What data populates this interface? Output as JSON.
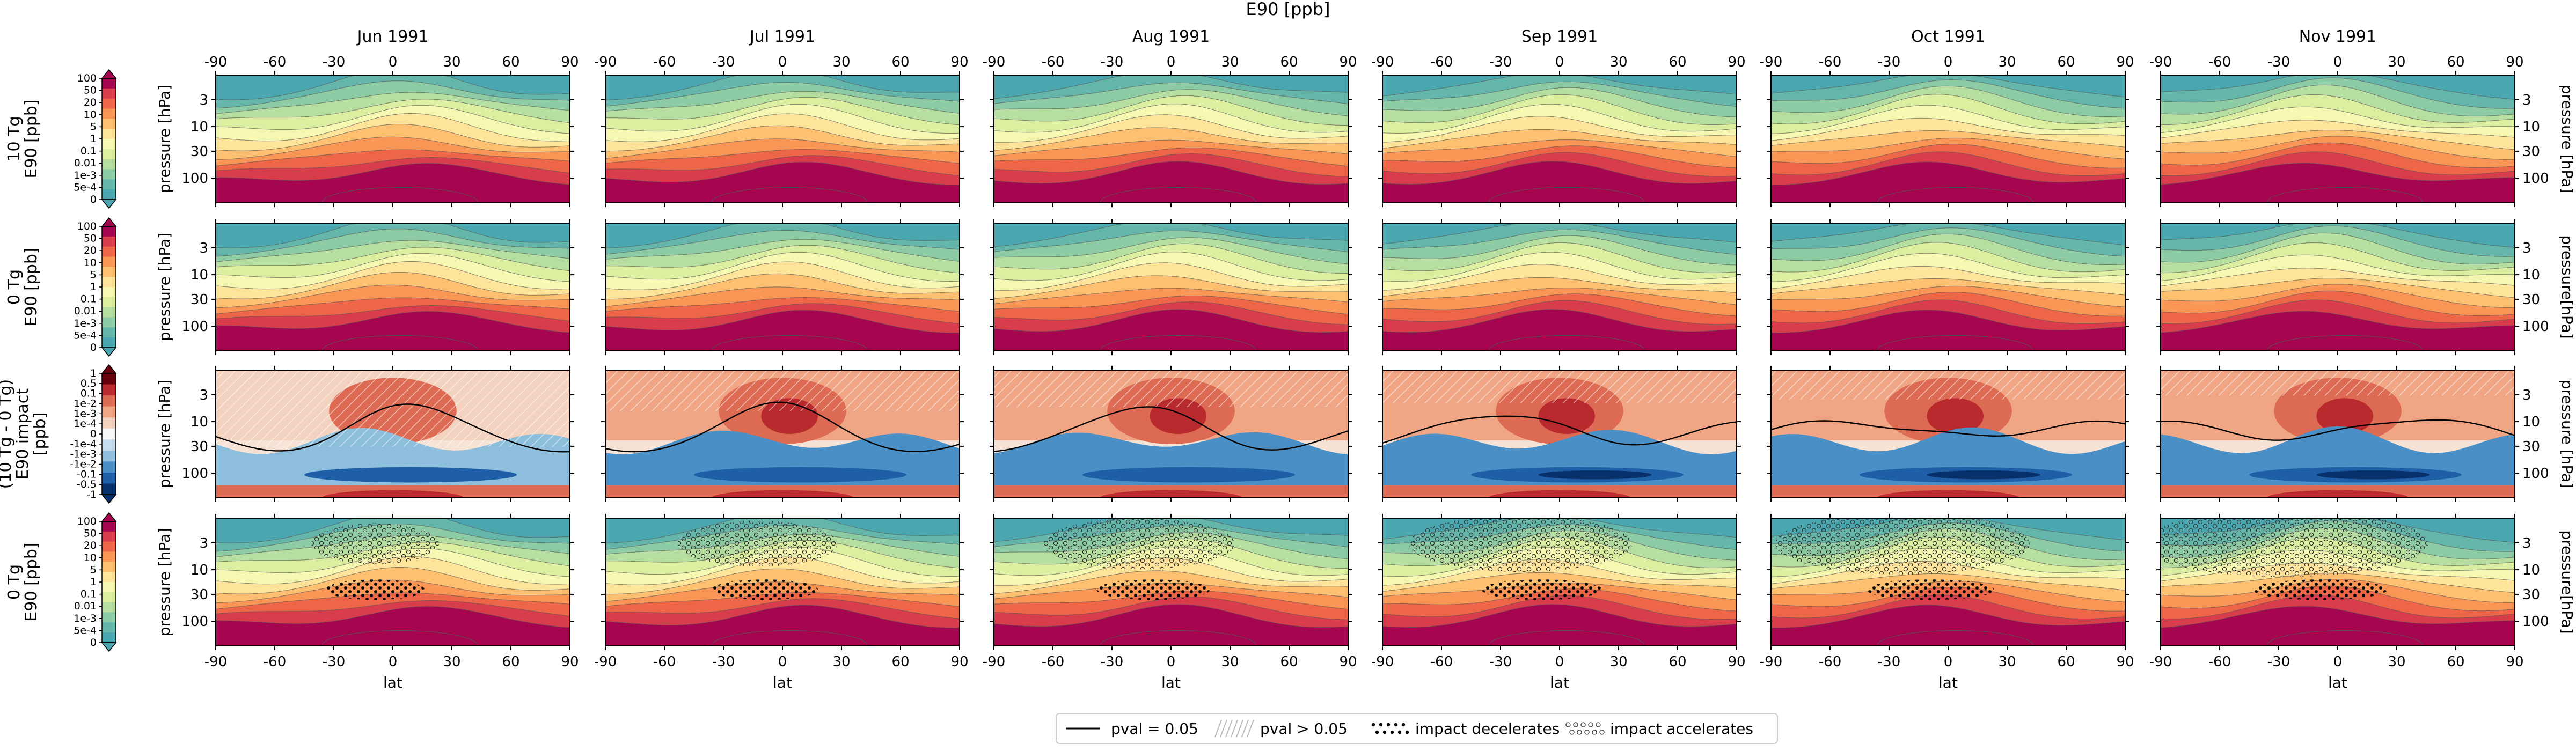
{
  "chart_data": {
    "type": "heatmap",
    "title": "E90 [ppb]",
    "columns": [
      "Jun 1991",
      "Jul 1991",
      "Aug 1991",
      "Sep 1991",
      "Oct 1991",
      "Nov 1991"
    ],
    "xlabel": "lat",
    "ylabel_left": "pressure [hPa]",
    "ylabel_right": [
      "pressure [hPa]",
      "pressure[hPa]",
      "pressure [hPa]",
      "pressure[hPa]"
    ],
    "xticks": [
      -90,
      -60,
      -30,
      0,
      30,
      60,
      90
    ],
    "xlim": [
      -90,
      90
    ],
    "yticks": [
      3,
      10,
      30,
      100
    ],
    "ylim_hPa": [
      1,
      300
    ],
    "yscale": "log",
    "yaxis_inverted": true,
    "rows": [
      {
        "label": [
          "10 Tg",
          "E90 [ppb]"
        ],
        "colorbar_ticks": [
          "100",
          "50",
          "20",
          "10",
          "5",
          "1",
          "0.1",
          "0.01",
          "1e-3",
          "5e-4",
          "0"
        ],
        "colormap": "diverging-red-yellow-teal"
      },
      {
        "label": [
          "0 Tg",
          "E90 [ppb]"
        ],
        "colorbar_ticks": [
          "100",
          "50",
          "20",
          "10",
          "5",
          "1",
          "0.1",
          "0.01",
          "1e-3",
          "5e-4",
          "0"
        ],
        "colormap": "diverging-red-yellow-teal"
      },
      {
        "label": [
          "(10 Tg - 0 Tg)",
          "E90 impact",
          "[ppb]"
        ],
        "colorbar_ticks": [
          "1",
          "0.5",
          "0.1",
          "1e-2",
          "1e-3",
          "1e-4",
          "0",
          "-1e-4",
          "-1e-3",
          "-1e-2",
          "-0.1",
          "-0.5",
          "-1"
        ],
        "colormap": "diverging-red-blue"
      },
      {
        "label": [
          "0 Tg",
          "E90 [ppb]"
        ],
        "colorbar_ticks": [
          "100",
          "50",
          "20",
          "10",
          "5",
          "1",
          "0.1",
          "0.01",
          "1e-3",
          "5e-4",
          "0"
        ],
        "colormap": "diverging-red-yellow-teal"
      }
    ],
    "legend": {
      "placement": "bottom-center",
      "entries": [
        {
          "label": "pval = 0.05",
          "marker": "solid-line"
        },
        {
          "label": "pval > 0.05",
          "marker": "diagonal-hatch"
        },
        {
          "label": "impact decelerates",
          "marker": "filled-dots"
        },
        {
          "label": "impact accelerates",
          "marker": "open-circles"
        }
      ]
    },
    "colors": {
      "level_palette": [
        "#4aa7b0",
        "#65b6aa",
        "#8ccba4",
        "#b5dea0",
        "#dcefa0",
        "#f6f8b2",
        "#fde49a",
        "#fdc070",
        "#f99656",
        "#ed6648",
        "#d93d4b",
        "#a6054f"
      ],
      "impact_palette": [
        "#08306b",
        "#1f5fa8",
        "#4a90c6",
        "#8dbfdd",
        "#c7dded",
        "#f3d2c0",
        "#f0a584",
        "#dd6a52",
        "#b82a2e"
      ]
    }
  }
}
